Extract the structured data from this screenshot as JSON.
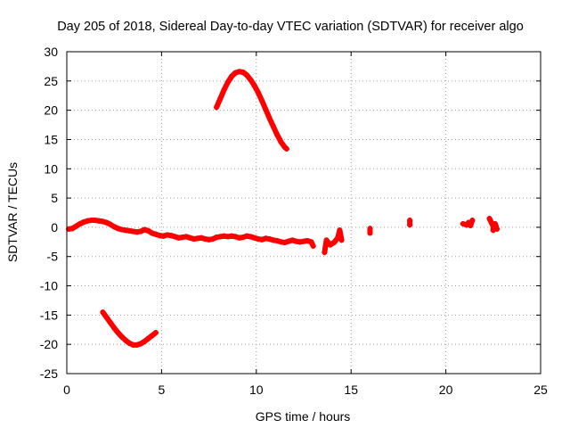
{
  "chart_data": {
    "type": "scatter",
    "title": "Day 205 of 2018, Sidereal Day-to-day VTEC variation (SDTVAR) for receiver algo",
    "xlabel": "GPS time / hours",
    "ylabel": "SDTVAR / TECUs",
    "xlim": [
      0,
      25
    ],
    "ylim": [
      -25,
      30
    ],
    "x_ticks": [
      0,
      5,
      10,
      15,
      20,
      25
    ],
    "y_ticks": [
      -25,
      -20,
      -15,
      -10,
      -5,
      0,
      5,
      10,
      15,
      20,
      25,
      30
    ],
    "grid": true,
    "marker": "plus",
    "color": "#ff0000",
    "series": [
      {
        "name": "upper arc",
        "points": [
          [
            7.9,
            20.5
          ],
          [
            8.1,
            22.0
          ],
          [
            8.3,
            23.5
          ],
          [
            8.5,
            24.8
          ],
          [
            8.7,
            25.8
          ],
          [
            8.9,
            26.4
          ],
          [
            9.1,
            26.6
          ],
          [
            9.3,
            26.5
          ],
          [
            9.5,
            26.0
          ],
          [
            9.7,
            25.2
          ],
          [
            9.9,
            24.2
          ],
          [
            10.1,
            23.0
          ],
          [
            10.3,
            21.6
          ],
          [
            10.5,
            20.1
          ],
          [
            10.7,
            18.6
          ],
          [
            10.9,
            17.2
          ],
          [
            11.1,
            15.8
          ],
          [
            11.3,
            14.6
          ],
          [
            11.5,
            13.7
          ],
          [
            11.6,
            13.4
          ]
        ]
      },
      {
        "name": "lower arc",
        "points": [
          [
            1.9,
            -14.5
          ],
          [
            2.1,
            -15.4
          ],
          [
            2.3,
            -16.3
          ],
          [
            2.5,
            -17.2
          ],
          [
            2.7,
            -18.0
          ],
          [
            2.9,
            -18.7
          ],
          [
            3.1,
            -19.3
          ],
          [
            3.3,
            -19.8
          ],
          [
            3.5,
            -20.1
          ],
          [
            3.7,
            -20.1
          ],
          [
            3.9,
            -19.9
          ],
          [
            4.1,
            -19.5
          ],
          [
            4.3,
            -19.0
          ],
          [
            4.5,
            -18.5
          ],
          [
            4.7,
            -18.0
          ]
        ]
      },
      {
        "name": "near zero",
        "points": [
          [
            0.1,
            -0.3
          ],
          [
            0.3,
            -0.2
          ],
          [
            0.5,
            0.2
          ],
          [
            0.7,
            0.6
          ],
          [
            0.9,
            0.9
          ],
          [
            1.1,
            1.1
          ],
          [
            1.3,
            1.2
          ],
          [
            1.5,
            1.2
          ],
          [
            1.7,
            1.1
          ],
          [
            1.9,
            1.0
          ],
          [
            2.1,
            0.8
          ],
          [
            2.3,
            0.5
          ],
          [
            2.5,
            0.1
          ],
          [
            2.7,
            -0.2
          ],
          [
            2.9,
            -0.4
          ],
          [
            3.1,
            -0.5
          ],
          [
            3.3,
            -0.6
          ],
          [
            3.5,
            -0.7
          ],
          [
            3.7,
            -0.8
          ],
          [
            3.9,
            -0.7
          ],
          [
            4.1,
            -0.4
          ],
          [
            4.3,
            -0.6
          ],
          [
            4.5,
            -1.0
          ],
          [
            4.7,
            -1.2
          ],
          [
            4.9,
            -1.4
          ],
          [
            5.1,
            -1.5
          ],
          [
            5.3,
            -1.3
          ],
          [
            5.5,
            -1.4
          ],
          [
            5.7,
            -1.6
          ],
          [
            5.9,
            -1.8
          ],
          [
            6.1,
            -1.7
          ],
          [
            6.3,
            -1.6
          ],
          [
            6.5,
            -1.8
          ],
          [
            6.7,
            -2.0
          ],
          [
            6.9,
            -1.9
          ],
          [
            7.1,
            -1.8
          ],
          [
            7.3,
            -2.0
          ],
          [
            7.5,
            -2.1
          ],
          [
            7.7,
            -2.0
          ],
          [
            7.9,
            -1.7
          ],
          [
            8.1,
            -1.6
          ],
          [
            8.3,
            -1.5
          ],
          [
            8.5,
            -1.6
          ],
          [
            8.7,
            -1.5
          ],
          [
            8.9,
            -1.6
          ],
          [
            9.1,
            -1.8
          ],
          [
            9.3,
            -1.7
          ],
          [
            9.5,
            -1.5
          ],
          [
            9.7,
            -1.6
          ],
          [
            9.9,
            -1.8
          ],
          [
            10.1,
            -2.0
          ],
          [
            10.3,
            -2.1
          ],
          [
            10.5,
            -1.9
          ],
          [
            10.7,
            -2.0
          ],
          [
            10.9,
            -2.2
          ],
          [
            11.1,
            -2.3
          ],
          [
            11.3,
            -2.5
          ],
          [
            11.5,
            -2.6
          ],
          [
            11.7,
            -2.4
          ],
          [
            11.9,
            -2.2
          ],
          [
            12.1,
            -2.4
          ],
          [
            12.3,
            -2.5
          ],
          [
            12.5,
            -2.4
          ],
          [
            12.7,
            -2.3
          ],
          [
            12.9,
            -2.5
          ],
          [
            13.0,
            -3.2
          ],
          [
            13.6,
            -4.3
          ],
          [
            13.7,
            -2.2
          ],
          [
            13.9,
            -3.0
          ],
          [
            14.1,
            -2.6
          ],
          [
            14.3,
            -1.8
          ],
          [
            14.4,
            -0.5
          ],
          [
            14.5,
            -2.2
          ],
          [
            16.0,
            -0.2
          ],
          [
            16.0,
            -1.0
          ],
          [
            18.1,
            1.2
          ],
          [
            18.1,
            0.4
          ],
          [
            20.9,
            0.6
          ],
          [
            21.1,
            0.4
          ],
          [
            21.2,
            0.8
          ],
          [
            21.3,
            0.3
          ],
          [
            21.4,
            1.2
          ],
          [
            22.3,
            1.5
          ],
          [
            22.4,
            0.8
          ],
          [
            22.5,
            0.2
          ],
          [
            22.5,
            -0.5
          ],
          [
            22.6,
            0.6
          ],
          [
            22.7,
            -0.3
          ]
        ]
      }
    ]
  }
}
